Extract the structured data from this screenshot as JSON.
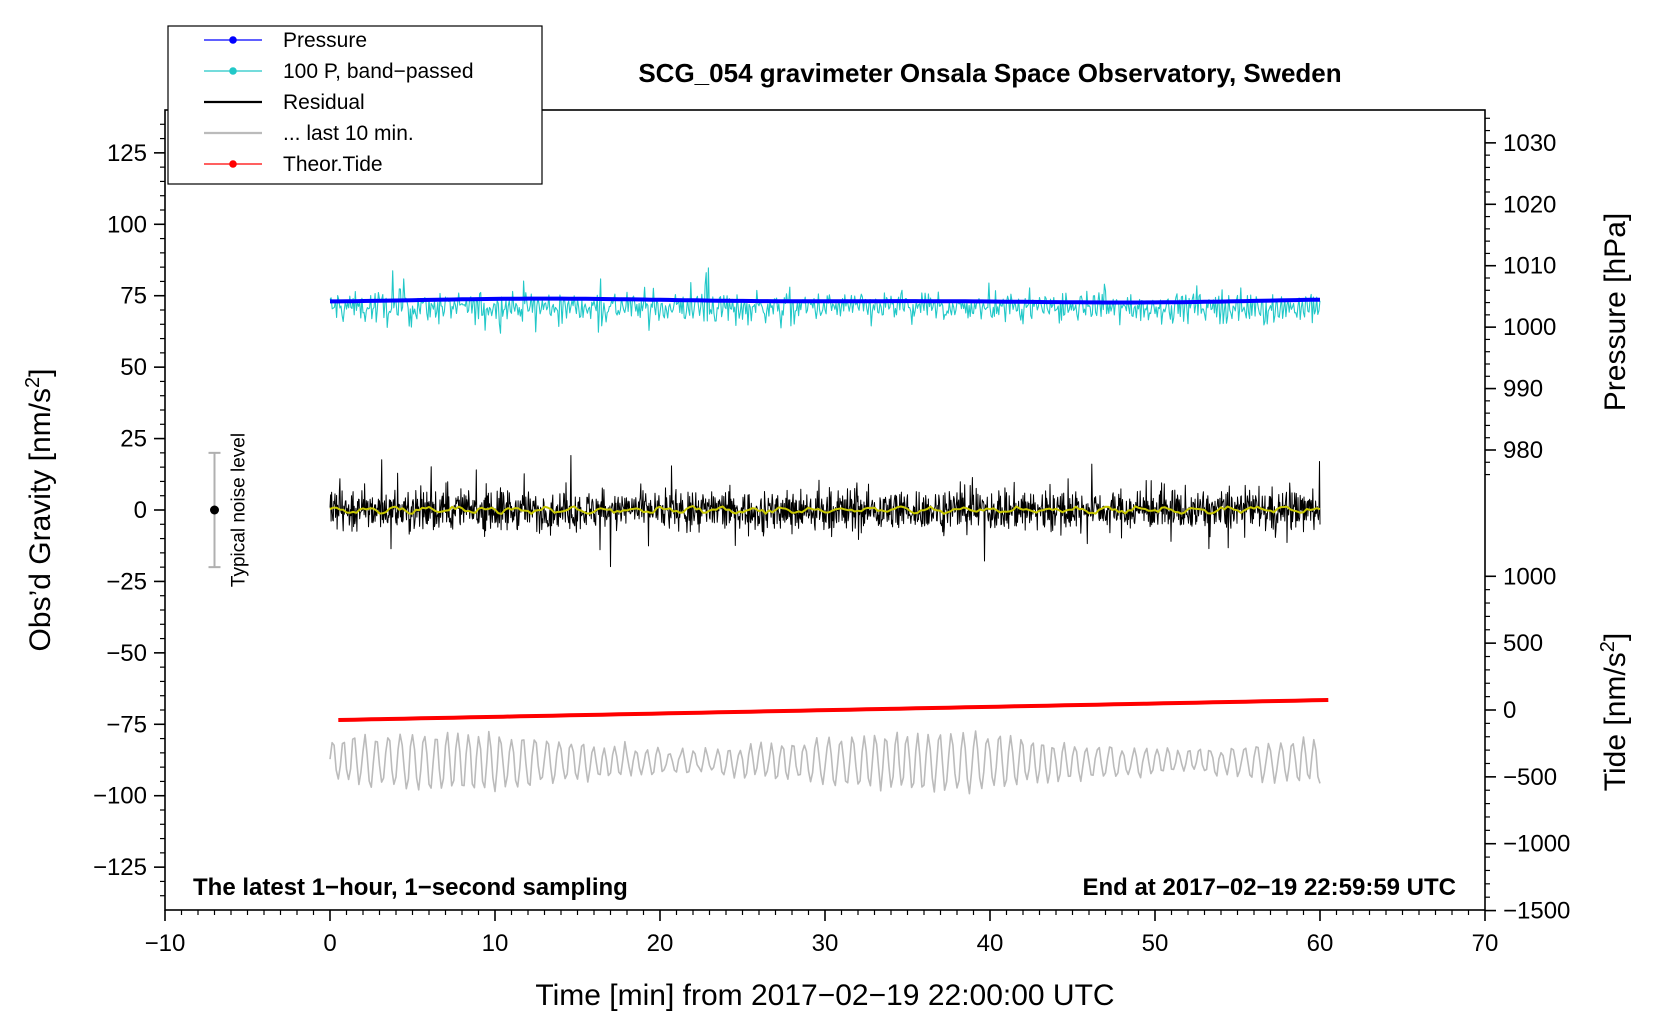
{
  "chart_data": {
    "type": "line",
    "title": "SCG_054 gravimeter Onsala Space Observatory, Sweden",
    "xlabel": "Time [min] from 2017−02−19 22:00:00 UTC",
    "ylabel_left": "Obs’d Gravity [nm/s²]",
    "ylabel_right_top": "Pressure [hPa]",
    "ylabel_right_bottom": "Tide [nm/s²]",
    "xlim": [
      -10,
      70
    ],
    "ylim_left": [
      -140,
      140
    ],
    "x_ticks": [
      {
        "value": -10,
        "label": "−10"
      },
      {
        "value": 0,
        "label": "0"
      },
      {
        "value": 10,
        "label": "10"
      },
      {
        "value": 20,
        "label": "20"
      },
      {
        "value": 30,
        "label": "30"
      },
      {
        "value": 40,
        "label": "40"
      },
      {
        "value": 50,
        "label": "50"
      },
      {
        "value": 60,
        "label": "60"
      },
      {
        "value": 70,
        "label": "70"
      }
    ],
    "y_ticks_left": [
      {
        "value": 125,
        "label": "125"
      },
      {
        "value": 100,
        "label": "100"
      },
      {
        "value": 75,
        "label": "75"
      },
      {
        "value": 50,
        "label": "50"
      },
      {
        "value": 25,
        "label": "25"
      },
      {
        "value": 0,
        "label": "0"
      },
      {
        "value": -25,
        "label": "−25"
      },
      {
        "value": -50,
        "label": "−50"
      },
      {
        "value": -75,
        "label": "−75"
      },
      {
        "value": -100,
        "label": "−100"
      },
      {
        "value": -125,
        "label": "−125"
      }
    ],
    "pressure_axis": {
      "ticks": [
        {
          "value": 1030,
          "label": "1030"
        },
        {
          "value": 1020,
          "label": "1020"
        },
        {
          "value": 1010,
          "label": "1010"
        },
        {
          "value": 1000,
          "label": "1000"
        },
        {
          "value": 990,
          "label": "990"
        },
        {
          "value": 980,
          "label": "980"
        }
      ],
      "map": {
        "p0": 1000,
        "g0": 64,
        "g_per_hpa": 2.15
      }
    },
    "tide_axis": {
      "ticks": [
        {
          "value": 1000,
          "label": "1000"
        },
        {
          "value": 500,
          "label": "500"
        },
        {
          "value": 0,
          "label": "0"
        },
        {
          "value": -500,
          "label": "−500"
        },
        {
          "value": -1000,
          "label": "−1000"
        },
        {
          "value": -1500,
          "label": "−1500"
        }
      ],
      "map": {
        "t0": 0,
        "g0": -70,
        "g_per_unit": 0.0468
      }
    },
    "legend": {
      "position": "top-left",
      "entries": [
        {
          "label": "Pressure",
          "color": "#0000ff",
          "marker": true
        },
        {
          "label": "100 P, band−passed",
          "color": "#22c8c8",
          "marker": true
        },
        {
          "label": "Residual",
          "color": "#000000",
          "marker": false
        },
        {
          "label": "... last 10 min.",
          "color": "#bbbbbb",
          "marker": false
        },
        {
          "label": "Theor.Tide",
          "color": "#ff0000",
          "marker": true
        }
      ]
    },
    "series": [
      {
        "name": "Pressure",
        "color": "#0000ff",
        "x_range": [
          0,
          60
        ],
        "value_hpa": 1004.3
      },
      {
        "name": "100 P, band−passed",
        "color": "#22c8c8",
        "x_range": [
          0,
          60
        ],
        "mean": 71,
        "range": [
          51,
          85
        ]
      },
      {
        "name": "Residual",
        "color": "#000000",
        "x_range": [
          0,
          60
        ],
        "mean": 0,
        "range": [
          -24,
          23
        ]
      },
      {
        "name": "Residual smoothed",
        "color": "#c8c800",
        "x_range": [
          0,
          60
        ],
        "mean": 0
      },
      {
        "name": "... last 10 min.",
        "color": "#bbbbbb",
        "x_range": [
          0,
          60
        ],
        "mean": -88,
        "range": [
          -102,
          -74
        ]
      },
      {
        "name": "Theor.Tide",
        "color": "#ff0000",
        "x_range": [
          0.5,
          60.5
        ],
        "y_start": -73.5,
        "y_end": -66.5
      }
    ],
    "noise_bar": {
      "x": -7,
      "y_center": 0,
      "y_low": -20,
      "y_high": 20,
      "label": "Typical noise level"
    },
    "annotations": {
      "bottom_left": "The latest 1−hour, 1−second sampling",
      "bottom_right": "End at 2017−02−19 22:59:59 UTC"
    }
  }
}
